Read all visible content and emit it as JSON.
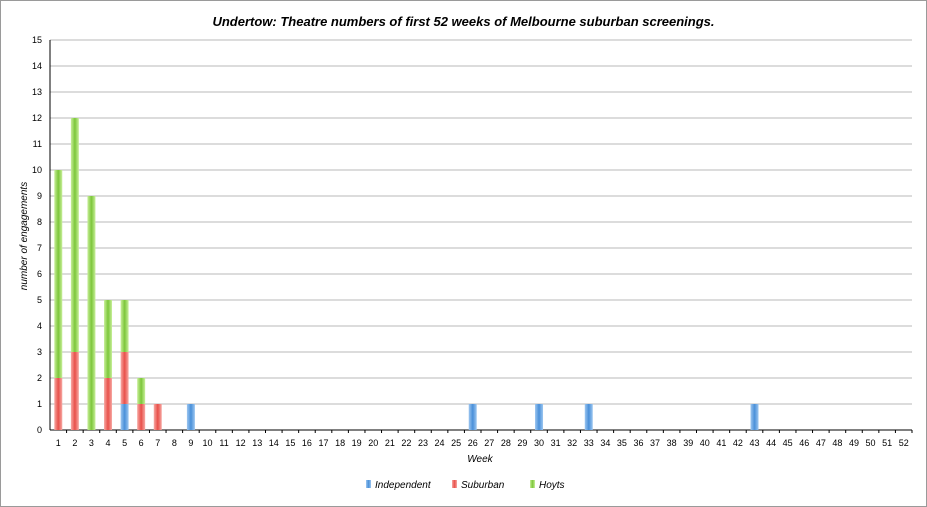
{
  "chart_data": {
    "type": "bar",
    "stacked": true,
    "title": "Undertow: Theatre numbers of first 52 weeks of Melbourne suburban screenings.",
    "xlabel": "Week",
    "ylabel": "number of engagements",
    "ylim": [
      0,
      15
    ],
    "yticks": [
      0,
      1,
      2,
      3,
      4,
      5,
      6,
      7,
      8,
      9,
      10,
      11,
      12,
      13,
      14,
      15
    ],
    "grid": true,
    "legend_position": "bottom",
    "categories": [
      "1",
      "2",
      "3",
      "4",
      "5",
      "6",
      "7",
      "8",
      "9",
      "10",
      "11",
      "12",
      "13",
      "14",
      "15",
      "16",
      "17",
      "18",
      "19",
      "20",
      "21",
      "22",
      "23",
      "24",
      "25",
      "26",
      "27",
      "28",
      "29",
      "30",
      "31",
      "32",
      "33",
      "34",
      "35",
      "36",
      "37",
      "38",
      "39",
      "40",
      "41",
      "42",
      "43",
      "44",
      "45",
      "46",
      "47",
      "48",
      "49",
      "50",
      "51",
      "52"
    ],
    "series": [
      {
        "name": "Independent",
        "color": "#4a90d9",
        "values": [
          0,
          0,
          0,
          0,
          1,
          0,
          0,
          0,
          1,
          0,
          0,
          0,
          0,
          0,
          0,
          0,
          0,
          0,
          0,
          0,
          0,
          0,
          0,
          0,
          0,
          1,
          0,
          0,
          0,
          1,
          0,
          0,
          1,
          0,
          0,
          0,
          0,
          0,
          0,
          0,
          0,
          0,
          1,
          0,
          0,
          0,
          0,
          0,
          0,
          0,
          0,
          0
        ]
      },
      {
        "name": "Suburban",
        "color": "#e8504a",
        "values": [
          2,
          3,
          0,
          2,
          2,
          1,
          1,
          0,
          0,
          0,
          0,
          0,
          0,
          0,
          0,
          0,
          0,
          0,
          0,
          0,
          0,
          0,
          0,
          0,
          0,
          0,
          0,
          0,
          0,
          0,
          0,
          0,
          0,
          0,
          0,
          0,
          0,
          0,
          0,
          0,
          0,
          0,
          0,
          0,
          0,
          0,
          0,
          0,
          0,
          0,
          0,
          0
        ]
      },
      {
        "name": "Hoyts",
        "color": "#7cc63a",
        "values": [
          8,
          9,
          9,
          3,
          2,
          1,
          0,
          0,
          0,
          0,
          0,
          0,
          0,
          0,
          0,
          0,
          0,
          0,
          0,
          0,
          0,
          0,
          0,
          0,
          0,
          0,
          0,
          0,
          0,
          0,
          0,
          0,
          0,
          0,
          0,
          0,
          0,
          0,
          0,
          0,
          0,
          0,
          0,
          0,
          0,
          0,
          0,
          0,
          0,
          0,
          0,
          0
        ]
      }
    ]
  }
}
